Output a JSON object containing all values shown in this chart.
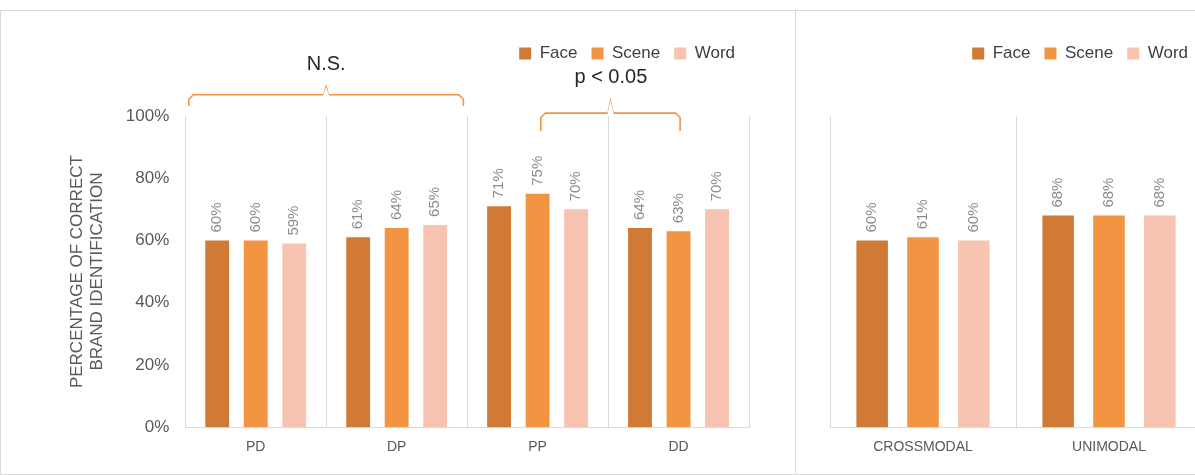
{
  "chart_data": [
    {
      "type": "bar",
      "ylabel": "PERCENTAGE OF CORRECT BRAND IDENTIFICATION",
      "categories": [
        "PD",
        "DP",
        "PP",
        "DD"
      ],
      "series": [
        {
          "name": "Face",
          "color": "#d07a35",
          "values": [
            60,
            61,
            71,
            64
          ],
          "value_labels": [
            "60%",
            "61%",
            "71%",
            "64%"
          ]
        },
        {
          "name": "Scene",
          "color": "#f29442",
          "values": [
            60,
            64,
            75,
            63
          ],
          "value_labels": [
            "60%",
            "64%",
            "75%",
            "63%"
          ]
        },
        {
          "name": "Word",
          "color": "#f6c4b0",
          "values": [
            59,
            65,
            70,
            70
          ],
          "value_labels": [
            "59%",
            "65%",
            "70%",
            "70%"
          ]
        }
      ],
      "ylim": [
        0,
        100
      ],
      "yticks": [
        {
          "value": 0,
          "label": "0%"
        },
        {
          "value": 20,
          "label": "20%"
        },
        {
          "value": 40,
          "label": "40%"
        },
        {
          "value": 60,
          "label": "60%"
        },
        {
          "value": 80,
          "label": "80%"
        },
        {
          "value": 100,
          "label": "100%"
        }
      ],
      "grid": "x",
      "legend": "top right",
      "annotations": [
        "N.S.",
        "p < 0.05"
      ]
    },
    {
      "type": "bar",
      "categories": [
        "CROSSMODAL",
        "UNIMODAL"
      ],
      "series": [
        {
          "name": "Face",
          "color": "#d07a35",
          "values": [
            60,
            68
          ],
          "value_labels": [
            "60%",
            "68%"
          ]
        },
        {
          "name": "Scene",
          "color": "#f29442",
          "values": [
            61,
            68
          ],
          "value_labels": [
            "61%",
            "68%"
          ]
        },
        {
          "name": "Word",
          "color": "#f6c4b0",
          "values": [
            60,
            68
          ],
          "value_labels": [
            "60%",
            "68%"
          ]
        }
      ],
      "ylim": [
        0,
        100
      ],
      "tick_labels": "x",
      "grid": "x",
      "legend": "top right"
    }
  ]
}
